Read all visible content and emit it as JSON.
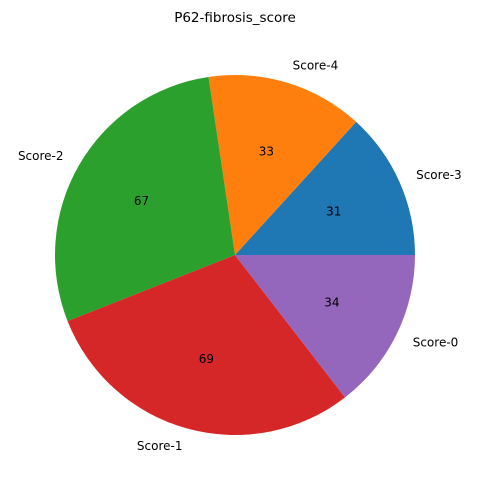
{
  "chart_data": {
    "type": "pie",
    "title": "P62-fibrosis_score",
    "slices": [
      {
        "label": "Score-3",
        "value": 31,
        "color": "#1f77b4"
      },
      {
        "label": "Score-4",
        "value": 33,
        "color": "#ff7f0e"
      },
      {
        "label": "Score-2",
        "value": 67,
        "color": "#2ca02c"
      },
      {
        "label": "Score-1",
        "value": 69,
        "color": "#d62728"
      },
      {
        "label": "Score-0",
        "value": 34,
        "color": "#9467bd"
      }
    ],
    "start_angle_deg": 0,
    "direction": "counterclockwise",
    "legend": "none"
  }
}
